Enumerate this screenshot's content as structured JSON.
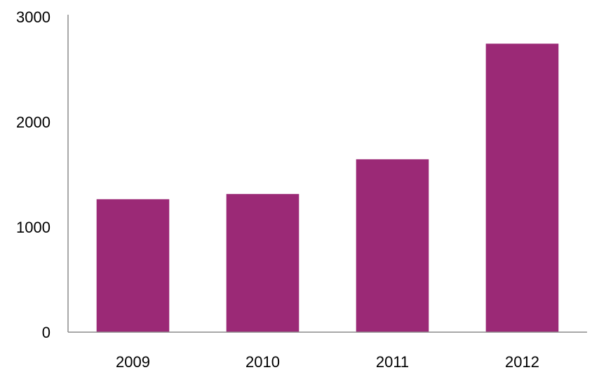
{
  "chart_data": {
    "type": "bar",
    "title": "",
    "xlabel": "",
    "ylabel": "",
    "categories": [
      "2009",
      "2010",
      "2011",
      "2012"
    ],
    "values": [
      1265,
      1315,
      1645,
      2745
    ],
    "ylim": [
      0,
      3000
    ],
    "yticks": [
      0,
      1000,
      2000,
      3000
    ],
    "ytick_labels": [
      "0",
      "1000",
      "2000",
      "3000"
    ],
    "grid": false,
    "legend": "none",
    "bar_color": "#9B2976",
    "axis_color": "#8C8C8C"
  }
}
